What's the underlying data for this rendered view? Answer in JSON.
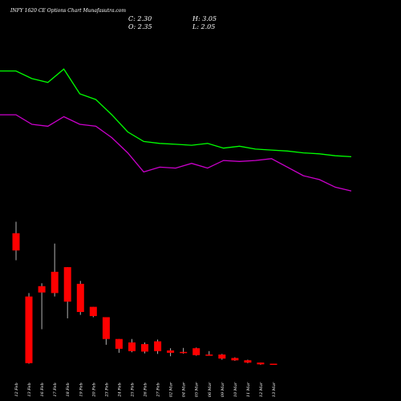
{
  "header": {
    "title": "INFY 1620 CE Options Chart Munafasutra.com",
    "close_label": "C: 2.30",
    "open_label": "O: 2.35",
    "high_label": "H: 3.05",
    "low_label": "L: 2.05"
  },
  "colors": {
    "background": "#000000",
    "up": "#00ff00",
    "down": "#ff0000",
    "wick": "#b0b0b0",
    "line_upper": "#00ff00",
    "line_lower": "#cc00cc"
  },
  "chart_data": [
    {
      "type": "line",
      "series": [
        {
          "values": [
            108,
            108,
            104,
            102,
            109,
            96,
            93,
            85,
            76,
            71,
            70,
            69.5,
            69,
            70,
            67.5,
            68.5,
            67,
            66.5,
            66,
            65,
            64.5,
            63.5,
            63
          ]
        },
        {
          "values": [
            85,
            85,
            80,
            79,
            84,
            80,
            79,
            73,
            65,
            55,
            57.5,
            57,
            59.5,
            57,
            61,
            60.5,
            61,
            62,
            57.5,
            53,
            51,
            47,
            45
          ]
        }
      ],
      "ylim": [
        40,
        120
      ],
      "grid": false
    },
    {
      "type": "candlestick",
      "categories": [
        "12 Feb",
        "13 Feb",
        "16 Feb",
        "17 Feb",
        "18 Feb",
        "19 Feb",
        "20 Feb",
        "23 Feb",
        "24 Feb",
        "25 Feb",
        "26 Feb",
        "27 Feb",
        "02 Mar",
        "04 Mar",
        "05 Mar",
        "06 Mar",
        "09 Mar",
        "10 Mar",
        "11 Mar",
        "12 Mar",
        "13 Mar"
      ],
      "open": [
        23.0,
        12.0,
        13.8,
        16.3,
        17.1,
        14.2,
        10.2,
        8.4,
        4.6,
        4.0,
        3.7,
        4.2,
        2.6,
        2.35,
        3.0,
        1.9,
        1.9,
        1.3,
        0.9,
        0.5,
        0.3
      ],
      "high": [
        25.0,
        12.6,
        14.3,
        21.2,
        17.1,
        14.7,
        10.2,
        8.4,
        4.6,
        4.6,
        4.0,
        4.5,
        3.0,
        3.05,
        3.1,
        2.5,
        2.0,
        1.4,
        1.0,
        0.5,
        0.3
      ],
      "low": [
        18.3,
        0.3,
        6.3,
        12.0,
        8.2,
        8.8,
        8.4,
        3.6,
        2.2,
        2.3,
        2.1,
        2.0,
        1.6,
        2.05,
        1.7,
        1.7,
        1.0,
        0.8,
        0.4,
        0.1,
        0.1
      ],
      "close": [
        20.0,
        0.4,
        12.7,
        12.6,
        11.1,
        9.3,
        8.6,
        4.6,
        2.9,
        2.5,
        2.4,
        2.5,
        2.2,
        2.3,
        1.8,
        1.7,
        1.2,
        0.9,
        0.5,
        0.2,
        0.1
      ],
      "ylim": [
        -2,
        28
      ],
      "grid": false
    }
  ]
}
